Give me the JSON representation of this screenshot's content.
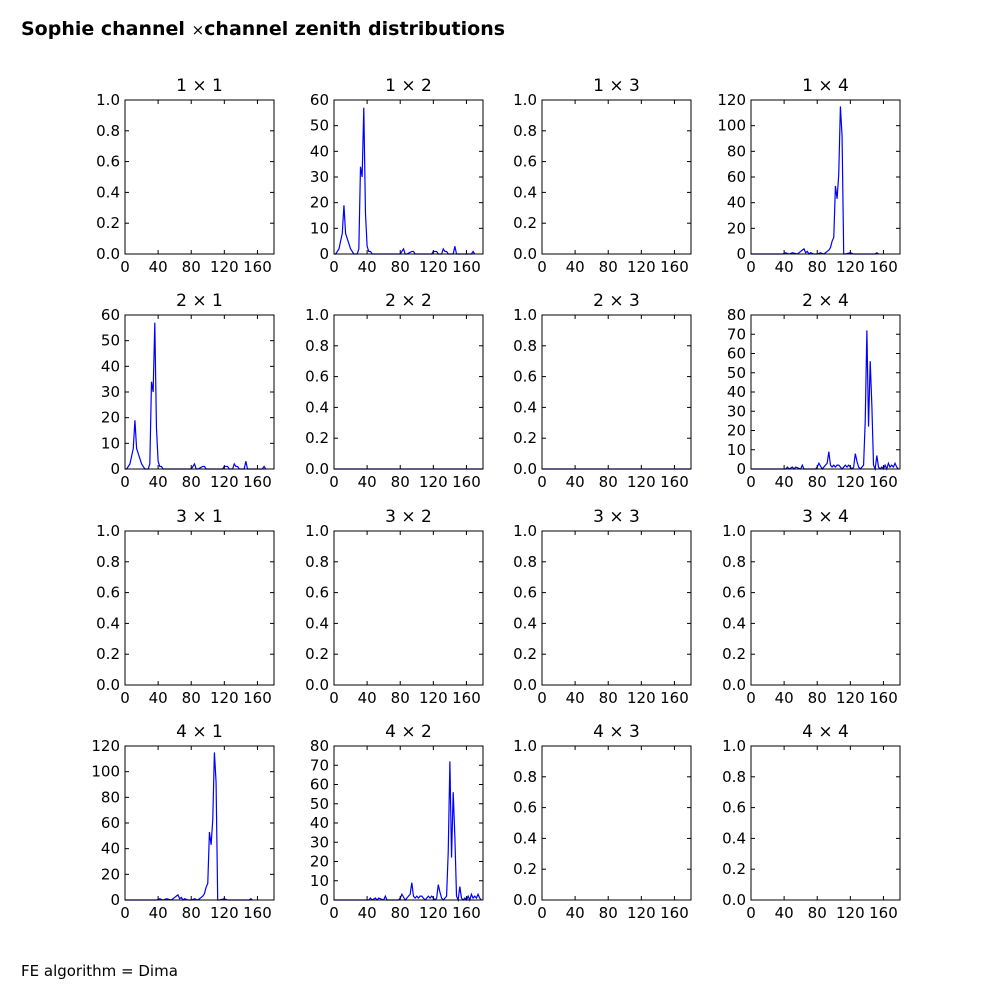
{
  "figure": {
    "title_prefix": "Sophie channel",
    "title_symbol": "×",
    "title_suffix": "channel zenith distributions",
    "footer": "FE algorithm = Dima"
  },
  "style": {
    "line_color": "#0000ff",
    "axes_color": "#000000"
  },
  "chart_data": [
    {
      "type": "line",
      "title": "1 × 1",
      "row": 1,
      "col": 1,
      "xlim": [
        0,
        180
      ],
      "xticks": [
        0,
        40,
        80,
        120,
        160
      ],
      "ylim": [
        0,
        1
      ],
      "yticks": [
        0.0,
        0.2,
        0.4,
        0.6,
        0.8,
        1.0
      ],
      "ytick_labels": [
        "0.0",
        "0.2",
        "0.4",
        "0.6",
        "0.8",
        "1.0"
      ],
      "series": []
    },
    {
      "type": "line",
      "title": "1 × 2",
      "row": 1,
      "col": 2,
      "xlim": [
        0,
        180
      ],
      "xticks": [
        0,
        40,
        80,
        120,
        160
      ],
      "ylim": [
        0,
        60
      ],
      "yticks": [
        0,
        10,
        20,
        30,
        40,
        50,
        60
      ],
      "ytick_labels": [
        "0",
        "10",
        "20",
        "30",
        "40",
        "50",
        "60"
      ],
      "series": [
        {
          "x": [
            0,
            2,
            4,
            6,
            8,
            10,
            12,
            14,
            16,
            18,
            20,
            22,
            24,
            26,
            28,
            30,
            32,
            34,
            36,
            38,
            40,
            42,
            44,
            46,
            48,
            80,
            82,
            84,
            86,
            88,
            94,
            96,
            98,
            118,
            120,
            122,
            124,
            126,
            130,
            132,
            134,
            136,
            138,
            144,
            146,
            148,
            166,
            168,
            170
          ],
          "y": [
            0,
            0,
            1,
            2,
            5,
            8,
            19,
            8,
            6,
            4,
            2,
            1,
            0,
            0,
            0,
            2,
            34,
            30,
            57,
            16,
            3,
            1,
            1,
            0,
            0,
            0,
            1,
            2,
            0,
            0,
            1,
            1,
            0,
            0,
            1,
            1,
            1,
            0,
            0,
            2,
            1,
            1,
            0,
            0,
            3,
            0,
            0,
            1,
            0
          ]
        }
      ]
    },
    {
      "type": "line",
      "title": "1 × 3",
      "row": 1,
      "col": 3,
      "xlim": [
        0,
        180
      ],
      "xticks": [
        0,
        40,
        80,
        120,
        160
      ],
      "ylim": [
        0,
        1
      ],
      "yticks": [
        0.0,
        0.2,
        0.4,
        0.6,
        0.8,
        1.0
      ],
      "ytick_labels": [
        "0.0",
        "0.2",
        "0.4",
        "0.6",
        "0.8",
        "1.0"
      ],
      "series": []
    },
    {
      "type": "line",
      "title": "1 × 4",
      "row": 1,
      "col": 4,
      "xlim": [
        0,
        180
      ],
      "xticks": [
        0,
        40,
        80,
        120,
        160
      ],
      "ylim": [
        0,
        120
      ],
      "yticks": [
        0,
        20,
        40,
        60,
        80,
        100,
        120
      ],
      "ytick_labels": [
        "0",
        "20",
        "40",
        "60",
        "80",
        "100",
        "120"
      ],
      "series": [
        {
          "x": [
            0,
            38,
            42,
            46,
            50,
            56,
            60,
            62,
            64,
            66,
            68,
            70,
            72,
            76,
            80,
            84,
            88,
            90,
            92,
            94,
            96,
            98,
            100,
            102,
            104,
            106,
            108,
            110,
            112,
            114,
            120,
            124,
            150,
            152,
            154
          ],
          "y": [
            0,
            0,
            1,
            0,
            1,
            0,
            2,
            3,
            4,
            1,
            2,
            0,
            1,
            0,
            0,
            1,
            0,
            1,
            2,
            3,
            5,
            10,
            13,
            53,
            43,
            62,
            115,
            92,
            0,
            0,
            1,
            0,
            0,
            1,
            0
          ]
        }
      ]
    },
    {
      "type": "line",
      "title": "2 × 1",
      "row": 2,
      "col": 1,
      "xlim": [
        0,
        180
      ],
      "xticks": [
        0,
        40,
        80,
        120,
        160
      ],
      "ylim": [
        0,
        60
      ],
      "yticks": [
        0,
        10,
        20,
        30,
        40,
        50,
        60
      ],
      "ytick_labels": [
        "0",
        "10",
        "20",
        "30",
        "40",
        "50",
        "60"
      ],
      "series": [
        {
          "x": [
            0,
            2,
            4,
            6,
            8,
            10,
            12,
            14,
            16,
            18,
            20,
            22,
            24,
            26,
            28,
            30,
            32,
            34,
            36,
            38,
            40,
            42,
            44,
            46,
            48,
            80,
            82,
            84,
            86,
            88,
            94,
            96,
            98,
            118,
            120,
            122,
            124,
            126,
            130,
            132,
            134,
            136,
            138,
            144,
            146,
            148,
            166,
            168,
            170
          ],
          "y": [
            0,
            0,
            1,
            2,
            5,
            8,
            19,
            8,
            6,
            4,
            2,
            1,
            0,
            0,
            0,
            2,
            34,
            30,
            57,
            16,
            3,
            1,
            1,
            0,
            0,
            0,
            1,
            2,
            0,
            0,
            1,
            1,
            0,
            0,
            1,
            1,
            1,
            0,
            0,
            2,
            1,
            1,
            0,
            0,
            3,
            0,
            0,
            1,
            0
          ]
        }
      ]
    },
    {
      "type": "line",
      "title": "2 × 2",
      "row": 2,
      "col": 2,
      "xlim": [
        0,
        180
      ],
      "xticks": [
        0,
        40,
        80,
        120,
        160
      ],
      "ylim": [
        0,
        1
      ],
      "yticks": [
        0.0,
        0.2,
        0.4,
        0.6,
        0.8,
        1.0
      ],
      "ytick_labels": [
        "0.0",
        "0.2",
        "0.4",
        "0.6",
        "0.8",
        "1.0"
      ],
      "series": [
        {
          "x": [
            0,
            180
          ],
          "y": [
            0,
            0
          ]
        }
      ]
    },
    {
      "type": "line",
      "title": "2 × 3",
      "row": 2,
      "col": 3,
      "xlim": [
        0,
        180
      ],
      "xticks": [
        0,
        40,
        80,
        120,
        160
      ],
      "ylim": [
        0,
        1
      ],
      "yticks": [
        0.0,
        0.2,
        0.4,
        0.6,
        0.8,
        1.0
      ],
      "ytick_labels": [
        "0.0",
        "0.2",
        "0.4",
        "0.6",
        "0.8",
        "1.0"
      ],
      "series": [
        {
          "x": [
            0,
            180
          ],
          "y": [
            0,
            0
          ]
        }
      ]
    },
    {
      "type": "line",
      "title": "2 × 4",
      "row": 2,
      "col": 4,
      "xlim": [
        0,
        180
      ],
      "xticks": [
        0,
        40,
        80,
        120,
        160
      ],
      "ylim": [
        0,
        80
      ],
      "yticks": [
        0,
        10,
        20,
        30,
        40,
        50,
        60,
        70,
        80
      ],
      "ytick_labels": [
        "0",
        "10",
        "20",
        "30",
        "40",
        "50",
        "60",
        "70",
        "80"
      ],
      "series": [
        {
          "x": [
            0,
            42,
            44,
            46,
            50,
            52,
            54,
            60,
            62,
            64,
            78,
            80,
            82,
            86,
            88,
            90,
            92,
            94,
            96,
            98,
            100,
            102,
            104,
            106,
            108,
            110,
            112,
            114,
            116,
            118,
            122,
            124,
            126,
            128,
            130,
            132,
            134,
            136,
            138,
            140,
            142,
            144,
            146,
            148,
            150,
            152,
            154,
            156,
            158,
            160,
            162,
            164,
            166,
            168,
            170,
            172,
            174,
            176,
            178
          ],
          "y": [
            0,
            0,
            1,
            0,
            1,
            0,
            1,
            0,
            2,
            0,
            0,
            1,
            3,
            0,
            1,
            2,
            3,
            9,
            2,
            1,
            2,
            1,
            2,
            2,
            1,
            0,
            1,
            2,
            1,
            2,
            0,
            1,
            8,
            4,
            1,
            0,
            1,
            2,
            25,
            72,
            22,
            56,
            33,
            2,
            0,
            7,
            1,
            0,
            1,
            0,
            2,
            0,
            3,
            1,
            2,
            1,
            3,
            1,
            0
          ]
        }
      ]
    },
    {
      "type": "line",
      "title": "3 × 1",
      "row": 3,
      "col": 1,
      "xlim": [
        0,
        180
      ],
      "xticks": [
        0,
        40,
        80,
        120,
        160
      ],
      "ylim": [
        0,
        1
      ],
      "yticks": [
        0.0,
        0.2,
        0.4,
        0.6,
        0.8,
        1.0
      ],
      "ytick_labels": [
        "0.0",
        "0.2",
        "0.4",
        "0.6",
        "0.8",
        "1.0"
      ],
      "series": []
    },
    {
      "type": "line",
      "title": "3 × 2",
      "row": 3,
      "col": 2,
      "xlim": [
        0,
        180
      ],
      "xticks": [
        0,
        40,
        80,
        120,
        160
      ],
      "ylim": [
        0,
        1
      ],
      "yticks": [
        0.0,
        0.2,
        0.4,
        0.6,
        0.8,
        1.0
      ],
      "ytick_labels": [
        "0.0",
        "0.2",
        "0.4",
        "0.6",
        "0.8",
        "1.0"
      ],
      "series": []
    },
    {
      "type": "line",
      "title": "3 × 3",
      "row": 3,
      "col": 3,
      "xlim": [
        0,
        180
      ],
      "xticks": [
        0,
        40,
        80,
        120,
        160
      ],
      "ylim": [
        0,
        1
      ],
      "yticks": [
        0.0,
        0.2,
        0.4,
        0.6,
        0.8,
        1.0
      ],
      "ytick_labels": [
        "0.0",
        "0.2",
        "0.4",
        "0.6",
        "0.8",
        "1.0"
      ],
      "series": []
    },
    {
      "type": "line",
      "title": "3 × 4",
      "row": 3,
      "col": 4,
      "xlim": [
        0,
        180
      ],
      "xticks": [
        0,
        40,
        80,
        120,
        160
      ],
      "ylim": [
        0,
        1
      ],
      "yticks": [
        0.0,
        0.2,
        0.4,
        0.6,
        0.8,
        1.0
      ],
      "ytick_labels": [
        "0.0",
        "0.2",
        "0.4",
        "0.6",
        "0.8",
        "1.0"
      ],
      "series": []
    },
    {
      "type": "line",
      "title": "4 × 1",
      "row": 4,
      "col": 1,
      "xlim": [
        0,
        180
      ],
      "xticks": [
        0,
        40,
        80,
        120,
        160
      ],
      "ylim": [
        0,
        120
      ],
      "yticks": [
        0,
        20,
        40,
        60,
        80,
        100,
        120
      ],
      "ytick_labels": [
        "0",
        "20",
        "40",
        "60",
        "80",
        "100",
        "120"
      ],
      "series": [
        {
          "x": [
            0,
            38,
            42,
            46,
            50,
            56,
            60,
            62,
            64,
            66,
            68,
            70,
            72,
            76,
            80,
            84,
            88,
            90,
            92,
            94,
            96,
            98,
            100,
            102,
            104,
            106,
            108,
            110,
            112,
            114,
            120,
            124,
            150,
            152,
            154
          ],
          "y": [
            0,
            0,
            1,
            0,
            1,
            0,
            2,
            3,
            4,
            1,
            2,
            0,
            1,
            0,
            0,
            1,
            0,
            1,
            2,
            3,
            5,
            10,
            13,
            53,
            43,
            62,
            115,
            92,
            0,
            0,
            1,
            0,
            0,
            1,
            0
          ]
        }
      ]
    },
    {
      "type": "line",
      "title": "4 × 2",
      "row": 4,
      "col": 2,
      "xlim": [
        0,
        180
      ],
      "xticks": [
        0,
        40,
        80,
        120,
        160
      ],
      "ylim": [
        0,
        80
      ],
      "yticks": [
        0,
        10,
        20,
        30,
        40,
        50,
        60,
        70,
        80
      ],
      "ytick_labels": [
        "0",
        "10",
        "20",
        "30",
        "40",
        "50",
        "60",
        "70",
        "80"
      ],
      "series": [
        {
          "x": [
            0,
            42,
            44,
            46,
            50,
            52,
            54,
            60,
            62,
            64,
            78,
            80,
            82,
            86,
            88,
            90,
            92,
            94,
            96,
            98,
            100,
            102,
            104,
            106,
            108,
            110,
            112,
            114,
            116,
            118,
            122,
            124,
            126,
            128,
            130,
            132,
            134,
            136,
            138,
            140,
            142,
            144,
            146,
            148,
            150,
            152,
            154,
            156,
            158,
            160,
            162,
            164,
            166,
            168,
            170,
            172,
            174,
            176,
            178
          ],
          "y": [
            0,
            0,
            1,
            0,
            1,
            0,
            1,
            0,
            2,
            0,
            0,
            1,
            3,
            0,
            1,
            2,
            3,
            9,
            2,
            1,
            2,
            1,
            2,
            2,
            1,
            0,
            1,
            2,
            1,
            2,
            0,
            1,
            8,
            4,
            1,
            0,
            1,
            2,
            25,
            72,
            22,
            56,
            33,
            2,
            0,
            7,
            1,
            0,
            1,
            0,
            2,
            0,
            3,
            1,
            2,
            1,
            3,
            1,
            0
          ]
        }
      ]
    },
    {
      "type": "line",
      "title": "4 × 3",
      "row": 4,
      "col": 3,
      "xlim": [
        0,
        180
      ],
      "xticks": [
        0,
        40,
        80,
        120,
        160
      ],
      "ylim": [
        0,
        1
      ],
      "yticks": [
        0.0,
        0.2,
        0.4,
        0.6,
        0.8,
        1.0
      ],
      "ytick_labels": [
        "0.0",
        "0.2",
        "0.4",
        "0.6",
        "0.8",
        "1.0"
      ],
      "series": []
    },
    {
      "type": "line",
      "title": "4 × 4",
      "row": 4,
      "col": 4,
      "xlim": [
        0,
        180
      ],
      "xticks": [
        0,
        40,
        80,
        120,
        160
      ],
      "ylim": [
        0,
        1
      ],
      "yticks": [
        0.0,
        0.2,
        0.4,
        0.6,
        0.8,
        1.0
      ],
      "ytick_labels": [
        "0.0",
        "0.2",
        "0.4",
        "0.6",
        "0.8",
        "1.0"
      ],
      "series": []
    }
  ]
}
